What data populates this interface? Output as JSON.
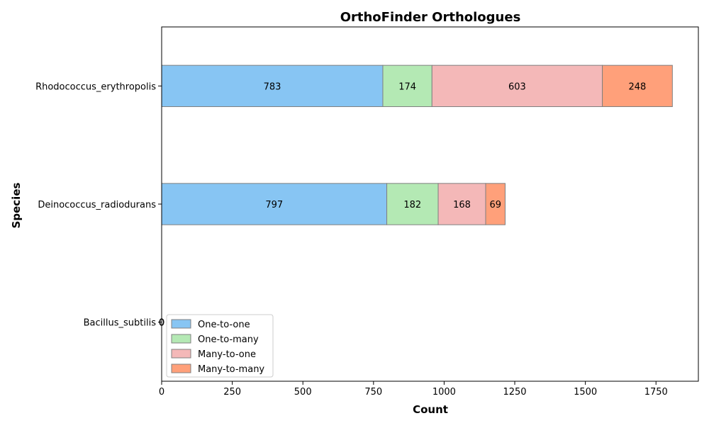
{
  "chart_data": {
    "type": "bar",
    "orientation": "horizontal",
    "stacked": true,
    "title": "OrthoFinder Orthologues",
    "xlabel": "Count",
    "ylabel": "Species",
    "categories": [
      "Bacillus_subtilis",
      "Deinococcus_radiodurans",
      "Rhodococcus_erythropolis"
    ],
    "series": [
      {
        "name": "One-to-one",
        "values": [
          0,
          797,
          783
        ],
        "color": "#87c5f3"
      },
      {
        "name": "One-to-many",
        "values": [
          0,
          182,
          174
        ],
        "color": "#b4e9b4"
      },
      {
        "name": "Many-to-one",
        "values": [
          0,
          168,
          603
        ],
        "color": "#f4b8b8"
      },
      {
        "name": "Many-to-many",
        "values": [
          0,
          69,
          248
        ],
        "color": "#ffa07a"
      }
    ],
    "xlim": [
      0,
      1900
    ],
    "xticks": [
      0,
      250,
      500,
      750,
      1000,
      1250,
      1500,
      1750
    ],
    "bar_edge_color": "#808080",
    "legend_position": "lower-left",
    "grid": false
  }
}
